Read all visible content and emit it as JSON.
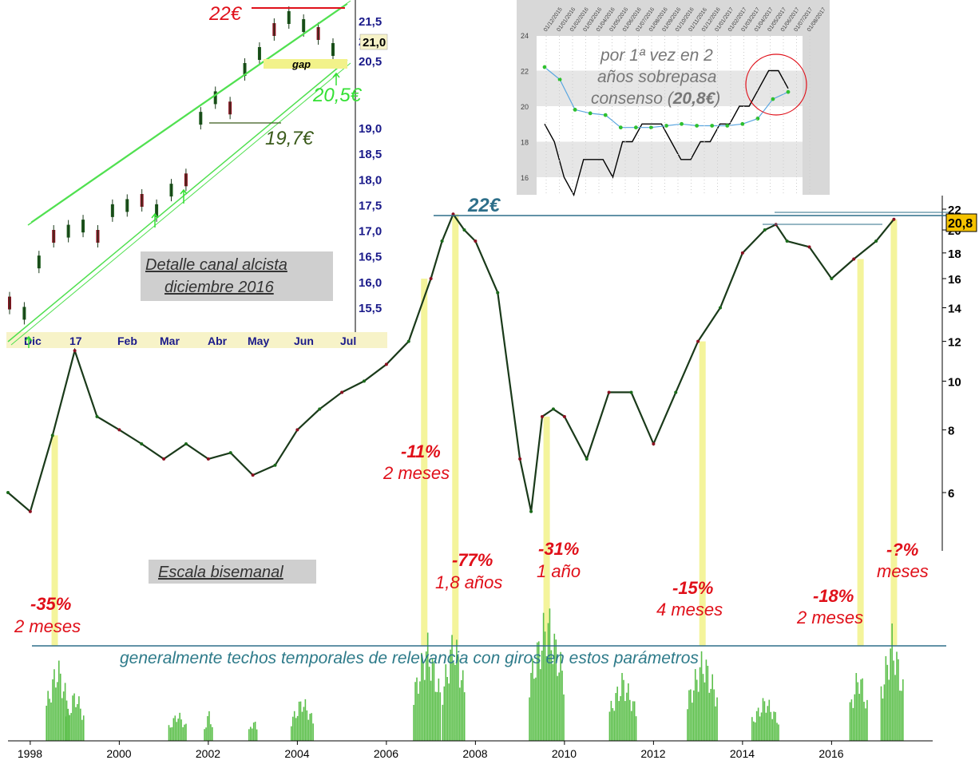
{
  "chart_data": [
    {
      "type": "line",
      "title": "",
      "scale": "log",
      "y_ticks": [
        "6",
        "8",
        "10",
        "12",
        "14",
        "16",
        "18",
        "20",
        "22"
      ],
      "x_ticks": [
        "1998",
        "2000",
        "2002",
        "2004",
        "2006",
        "2008",
        "2010",
        "2012",
        "2014",
        "2016"
      ],
      "current_value_badge": "20,8",
      "peak_label": "22€",
      "x": [
        1997.5,
        1998.0,
        1998.5,
        1999.0,
        1999.5,
        2000.0,
        2000.5,
        2001.0,
        2001.5,
        2002.0,
        2002.5,
        2003.0,
        2003.5,
        2004.0,
        2004.5,
        2005.0,
        2005.5,
        2006.0,
        2006.5,
        2007.0,
        2007.25,
        2007.5,
        2007.75,
        2008.0,
        2008.5,
        2009.0,
        2009.25,
        2009.5,
        2009.75,
        2010.0,
        2010.5,
        2011.0,
        2011.5,
        2012.0,
        2012.5,
        2013.0,
        2013.5,
        2014.0,
        2014.5,
        2014.75,
        2015.0,
        2015.5,
        2016.0,
        2016.5,
        2017.0,
        2017.4
      ],
      "y": [
        6.0,
        5.5,
        7.8,
        11.5,
        8.5,
        8.0,
        7.5,
        7.0,
        7.5,
        7.0,
        7.2,
        6.5,
        6.8,
        8.0,
        8.8,
        9.5,
        10.0,
        10.8,
        12.0,
        16.0,
        19.0,
        21.5,
        20.0,
        19.0,
        15.0,
        7.0,
        5.5,
        8.5,
        8.8,
        8.5,
        7.0,
        9.5,
        9.5,
        7.5,
        9.5,
        12.0,
        14.0,
        18.0,
        20.0,
        20.5,
        19.0,
        18.5,
        16.0,
        17.5,
        19.0,
        21.0
      ],
      "annotations": [
        {
          "pct": "-35%",
          "duration": "2 meses"
        },
        {
          "pct": "-11%",
          "duration": "2 meses"
        },
        {
          "pct": "-77%",
          "duration": "1,8 años"
        },
        {
          "pct": "-31%",
          "duration": "1 año"
        },
        {
          "pct": "-15%",
          "duration": "4 meses"
        },
        {
          "pct": "-18%",
          "duration": "2 meses"
        },
        {
          "pct": "-?%",
          "duration": "meses"
        }
      ],
      "scale_label": "Escala bisemanal",
      "footnote": "generalmente techos temporales de relevancia con giros en estos parámetros",
      "highlight_years": [
        1998.55,
        2006.85,
        2007.55,
        2009.6,
        2013.1,
        2016.65,
        2017.4
      ]
    },
    {
      "type": "line",
      "title": "",
      "label_line1": "Detalle canal alcista",
      "label_line2": "diciembre 2016",
      "y_ticks": [
        "15,5",
        "16,0",
        "16,5",
        "17,0",
        "17,5",
        "18,0",
        "18,5",
        "19,0",
        "20,5",
        "21,0",
        "21,5"
      ],
      "x_ticks": [
        "Dic",
        "17",
        "Feb",
        "Mar",
        "Abr",
        "May",
        "Jun",
        "Jul"
      ],
      "values": [
        15.6,
        15.4,
        16.4,
        16.9,
        17.0,
        17.1,
        16.9,
        17.4,
        17.5,
        17.6,
        17.4,
        17.8,
        18.0,
        19.2,
        19.6,
        19.4,
        20.3,
        20.7,
        21.3,
        21.6,
        21.4,
        21.2,
        20.8
      ],
      "price_labels": {
        "top": "22€",
        "support": "20,5€",
        "low": "19,7€",
        "gap": "gap",
        "current": "21,0"
      }
    },
    {
      "type": "line",
      "title": "",
      "note_line1": "por 1ª vez en 2",
      "note_line2": "años sobrepasa",
      "note_line3a": "consenso (",
      "note_line3b": "20,8€",
      "note_line3c": ")",
      "y_ticks": [
        "16",
        "18",
        "20",
        "22",
        "24"
      ],
      "x_ticks": [
        "01/12/2015",
        "01/01/2016",
        "01/02/2016",
        "01/03/2016",
        "01/04/2016",
        "01/05/2016",
        "01/06/2016",
        "01/07/2016",
        "01/08/2016",
        "01/09/2016",
        "01/10/2016",
        "01/11/2016",
        "01/12/2016",
        "01/01/2017",
        "01/02/2017",
        "01/03/2017",
        "01/04/2017",
        "01/05/2017",
        "01/06/2017",
        "01/07/2017",
        "01/08/2017"
      ],
      "series": [
        {
          "name": "",
          "values": [
            19,
            18,
            16,
            15,
            17,
            17,
            17,
            16,
            18,
            18,
            19,
            19,
            19,
            18,
            17,
            17,
            18,
            18,
            19,
            19,
            20,
            20,
            21,
            22,
            22,
            21
          ]
        },
        {
          "name": "",
          "values": [
            22.2,
            21.5,
            19.8,
            19.6,
            19.5,
            18.8,
            18.8,
            18.8,
            18.9,
            19.0,
            18.9,
            18.9,
            18.9,
            19.0,
            19.3,
            20.4,
            20.8
          ]
        }
      ]
    }
  ]
}
